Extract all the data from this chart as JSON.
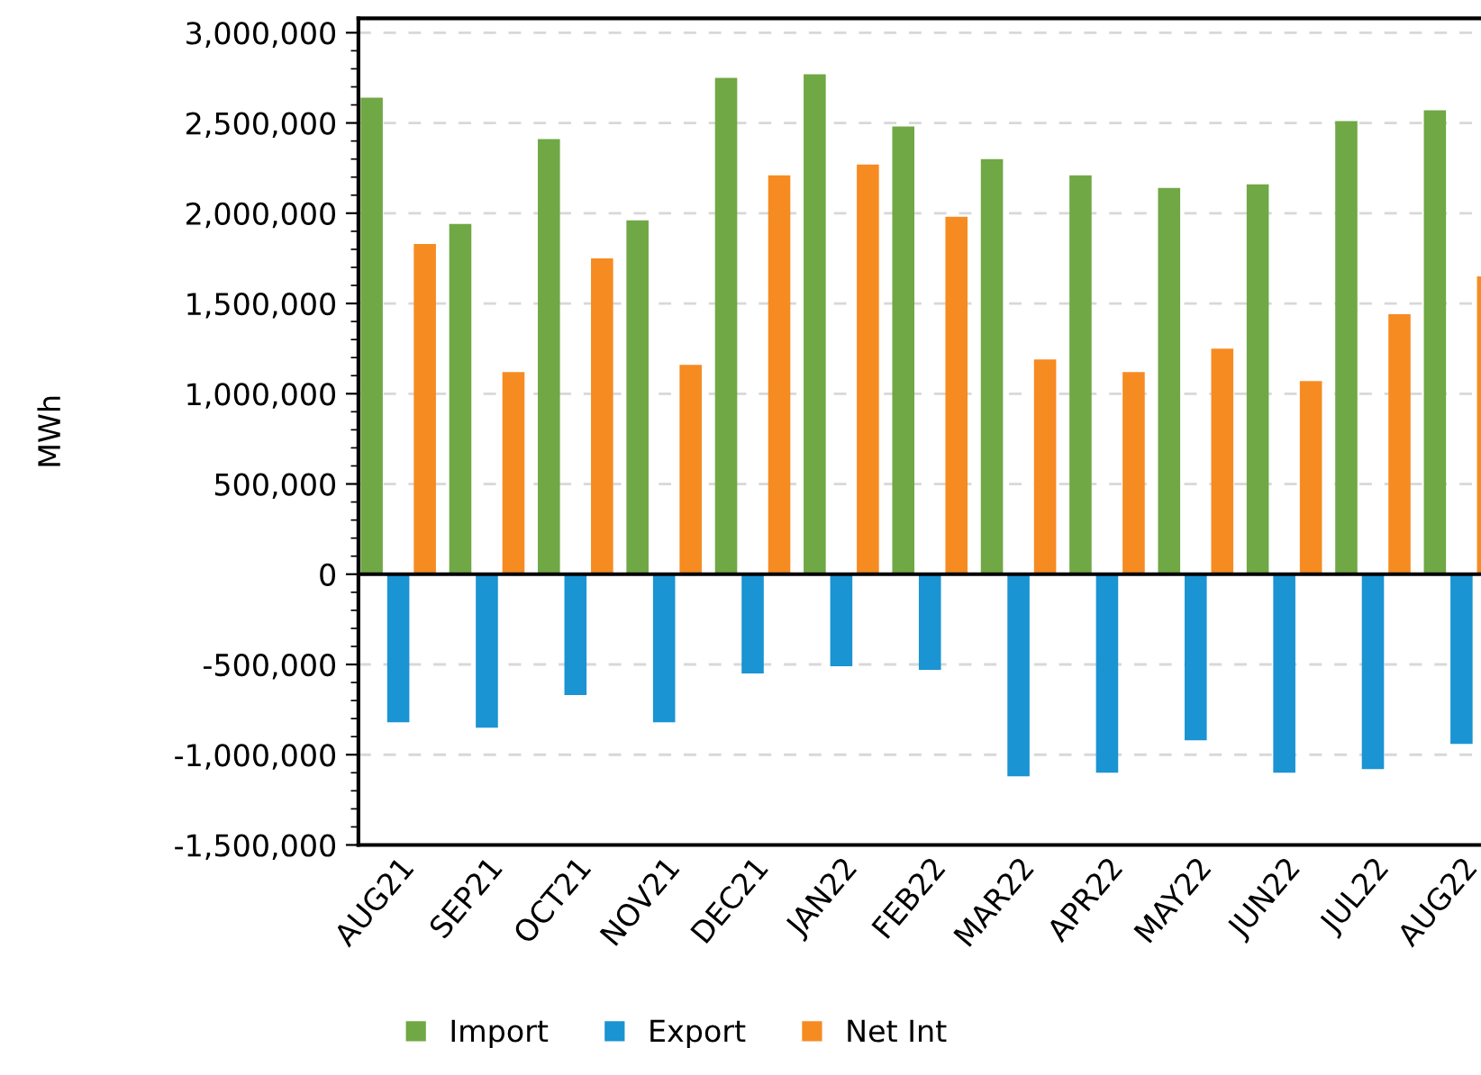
{
  "chart_data": {
    "type": "bar",
    "ylabel": "MWh",
    "categories": [
      "AUG21",
      "SEP21",
      "OCT21",
      "NOV21",
      "DEC21",
      "JAN22",
      "FEB22",
      "MAR22",
      "APR22",
      "MAY22",
      "JUN22",
      "JUL22",
      "AUG22"
    ],
    "series": [
      {
        "name": "Import",
        "color": "#70a845",
        "values": [
          2640000,
          1940000,
          2410000,
          1960000,
          2750000,
          2770000,
          2480000,
          2300000,
          2210000,
          2140000,
          2160000,
          2510000,
          2570000
        ]
      },
      {
        "name": "Export",
        "color": "#1a94d2",
        "values": [
          -820000,
          -850000,
          -670000,
          -820000,
          -550000,
          -510000,
          -530000,
          -1120000,
          -1100000,
          -920000,
          -1100000,
          -1080000,
          -940000
        ]
      },
      {
        "name": "Net Int",
        "color": "#f68b22",
        "values": [
          1830000,
          1120000,
          1750000,
          1160000,
          2210000,
          2270000,
          1980000,
          1190000,
          1120000,
          1250000,
          1070000,
          1440000,
          1650000
        ]
      }
    ],
    "ylim": [
      -1500000,
      3080000
    ],
    "yticks": [
      {
        "value": -1500000,
        "label": "-1,500,000"
      },
      {
        "value": -1000000,
        "label": "-1,000,000"
      },
      {
        "value": -500000,
        "label": "-500,000"
      },
      0,
      {
        "value": 500000,
        "label": "500,000"
      },
      {
        "value": 1000000,
        "label": "1,000,000"
      },
      {
        "value": 1500000,
        "label": "1,500,000"
      },
      {
        "value": 2000000,
        "label": "2,000,000"
      },
      {
        "value": 2500000,
        "label": "2,500,000"
      },
      {
        "value": 3000000,
        "label": "3,000,000"
      }
    ],
    "grid": "y",
    "legend": "bottom"
  }
}
